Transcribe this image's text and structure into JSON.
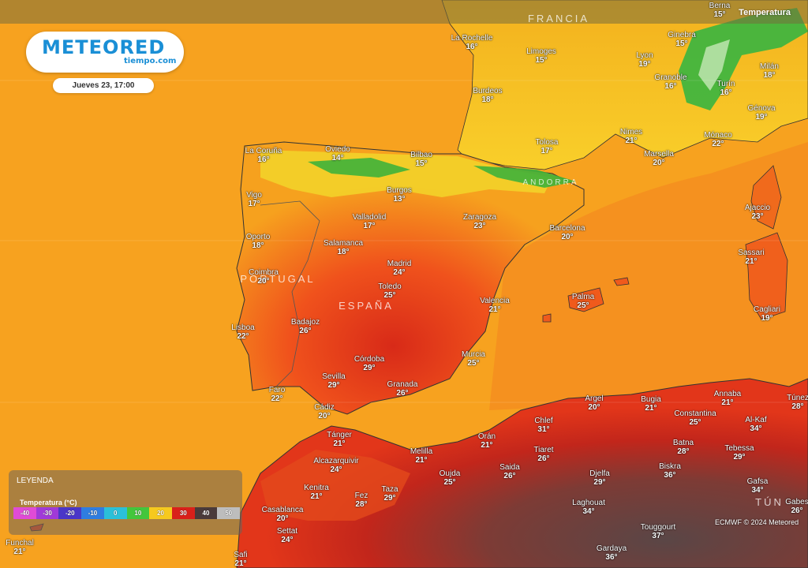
{
  "brand": {
    "name": "METEORED",
    "site": "tiempo.com"
  },
  "timestamp": "Jueves 23, 17:00",
  "layer_title": "Temperatura",
  "legend": {
    "title": "LEYENDA",
    "subtitle": "Temperatura (°C)",
    "ticks": [
      {
        "label": "-40",
        "color": "#e04bd6"
      },
      {
        "label": "-30",
        "color": "#a03ad8"
      },
      {
        "label": "-20",
        "color": "#4a36c8"
      },
      {
        "label": "-10",
        "color": "#2f7de0"
      },
      {
        "label": "0",
        "color": "#2bc0d8"
      },
      {
        "label": "10",
        "color": "#43c63c"
      },
      {
        "label": "20",
        "color": "#f6c91e"
      },
      {
        "label": "30",
        "color": "#d9201a"
      },
      {
        "label": "40",
        "color": "#4a3a3a"
      },
      {
        "label": "50",
        "color": "#bdbdbd"
      }
    ]
  },
  "credit": "ECMWF © 2024 Meteored",
  "regions": [
    "FRANCIA",
    "ANDORRA",
    "PORTUGAL",
    "ESPAÑA",
    "TÚN"
  ],
  "cities": [
    {
      "name": "Berna",
      "temp": "15°"
    },
    {
      "name": "La Rochelle",
      "temp": "16°"
    },
    {
      "name": "Limoges",
      "temp": "15°"
    },
    {
      "name": "Lyon",
      "temp": "19°"
    },
    {
      "name": "Ginebra",
      "temp": "15°"
    },
    {
      "name": "Milán",
      "temp": "18°"
    },
    {
      "name": "Burdeos",
      "temp": "18°"
    },
    {
      "name": "Granoble",
      "temp": "16°"
    },
    {
      "name": "Turín",
      "temp": "16°"
    },
    {
      "name": "Génova",
      "temp": "19°"
    },
    {
      "name": "Nimes",
      "temp": "21°"
    },
    {
      "name": "Mónaco",
      "temp": "22°"
    },
    {
      "name": "Tolosa",
      "temp": "17°"
    },
    {
      "name": "Marsella",
      "temp": "20°"
    },
    {
      "name": "La Coruña",
      "temp": "16°"
    },
    {
      "name": "Oviedo",
      "temp": "14°"
    },
    {
      "name": "Bilbao",
      "temp": "15°"
    },
    {
      "name": "Vigo",
      "temp": "17°"
    },
    {
      "name": "Burgos",
      "temp": "13°"
    },
    {
      "name": "Ajaccio",
      "temp": "23°"
    },
    {
      "name": "Valladolid",
      "temp": "17°"
    },
    {
      "name": "Zaragoza",
      "temp": "23°"
    },
    {
      "name": "Barcelona",
      "temp": "20°"
    },
    {
      "name": "Oporto",
      "temp": "18°"
    },
    {
      "name": "Salamanca",
      "temp": "18°"
    },
    {
      "name": "Sassari",
      "temp": "21°"
    },
    {
      "name": "Coimbra",
      "temp": "20°"
    },
    {
      "name": "Madrid",
      "temp": "24°"
    },
    {
      "name": "Toledo",
      "temp": "25°"
    },
    {
      "name": "Valencia",
      "temp": "21°"
    },
    {
      "name": "Palma",
      "temp": "25°"
    },
    {
      "name": "Cagliari",
      "temp": "19°"
    },
    {
      "name": "Lisboa",
      "temp": "22°"
    },
    {
      "name": "Badajoz",
      "temp": "26°"
    },
    {
      "name": "Córdoba",
      "temp": "29°"
    },
    {
      "name": "Murcia",
      "temp": "25°"
    },
    {
      "name": "Sevilla",
      "temp": "29°"
    },
    {
      "name": "Granada",
      "temp": "26°"
    },
    {
      "name": "Faro",
      "temp": "22°"
    },
    {
      "name": "Cádiz",
      "temp": "20°"
    },
    {
      "name": "Annaba",
      "temp": "21°"
    },
    {
      "name": "Túnez",
      "temp": "28°"
    },
    {
      "name": "Argel",
      "temp": "20°"
    },
    {
      "name": "Bugia",
      "temp": "21°"
    },
    {
      "name": "Constantina",
      "temp": "25°"
    },
    {
      "name": "Al-Kaf",
      "temp": "34°"
    },
    {
      "name": "Chlef",
      "temp": "31°"
    },
    {
      "name": "Tánger",
      "temp": "21°"
    },
    {
      "name": "Orán",
      "temp": "21°"
    },
    {
      "name": "Tiaret",
      "temp": "26°"
    },
    {
      "name": "Batna",
      "temp": "28°"
    },
    {
      "name": "Tebessa",
      "temp": "29°"
    },
    {
      "name": "Melilla",
      "temp": "21°"
    },
    {
      "name": "Alcazarquivir",
      "temp": "24°"
    },
    {
      "name": "Oujda",
      "temp": "25°"
    },
    {
      "name": "Saida",
      "temp": "26°"
    },
    {
      "name": "Djelfa",
      "temp": "29°"
    },
    {
      "name": "Biskra",
      "temp": "36°"
    },
    {
      "name": "Gafsa",
      "temp": "34°"
    },
    {
      "name": "Kenitra",
      "temp": "21°"
    },
    {
      "name": "Fez",
      "temp": "28°"
    },
    {
      "name": "Taza",
      "temp": "29°"
    },
    {
      "name": "Laghouat",
      "temp": "34°"
    },
    {
      "name": "Gabes",
      "temp": "26°"
    },
    {
      "name": "Casablanca",
      "temp": "20°"
    },
    {
      "name": "Touggourt",
      "temp": "37°"
    },
    {
      "name": "Settat",
      "temp": "24°"
    },
    {
      "name": "Funchal",
      "temp": "21°"
    },
    {
      "name": "Gardaya",
      "temp": "36°"
    },
    {
      "name": "Safi",
      "temp": "21°"
    }
  ]
}
